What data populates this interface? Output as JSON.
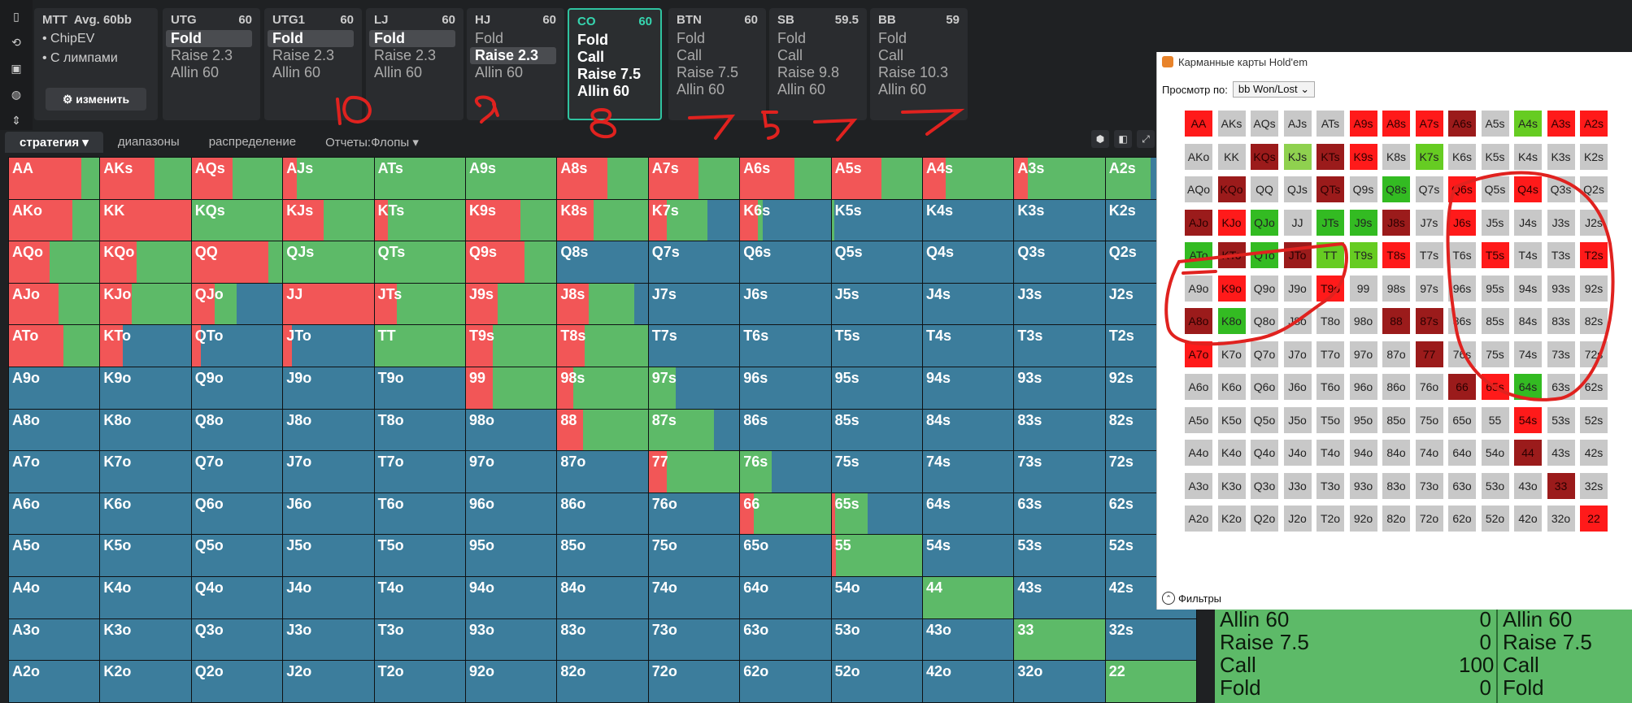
{
  "sidebar": {
    "icons": [
      "bookmark-icon",
      "history-icon",
      "save-icon",
      "gamepad-icon",
      "align-icon"
    ]
  },
  "mtt": {
    "title": "MTT",
    "avg": "Avg. 60bb",
    "items": [
      "ChipEV",
      "С лимпами"
    ],
    "edit": "изменить"
  },
  "positions": [
    {
      "name": "UTG",
      "stack": "60",
      "actions": [
        "Fold",
        "Raise 2.3",
        "Allin 60"
      ],
      "selected": 0
    },
    {
      "name": "UTG1",
      "stack": "60",
      "actions": [
        "Fold",
        "Raise 2.3",
        "Allin 60"
      ],
      "selected": 0
    },
    {
      "name": "LJ",
      "stack": "60",
      "actions": [
        "Fold",
        "Raise 2.3",
        "Allin 60"
      ],
      "selected": 0
    },
    {
      "name": "HJ",
      "stack": "60",
      "actions": [
        "Fold",
        "Raise 2.3",
        "Allin 60"
      ],
      "selected": 1
    },
    {
      "name": "CO",
      "stack": "60",
      "actions": [
        "Fold",
        "Call",
        "Raise 7.5",
        "Allin 60"
      ],
      "selected": -1
    },
    {
      "name": "BTN",
      "stack": "60",
      "actions": [
        "Fold",
        "Call",
        "Raise 7.5",
        "Allin 60"
      ],
      "selected": -1
    },
    {
      "name": "SB",
      "stack": "59.5",
      "actions": [
        "Fold",
        "Call",
        "Raise 9.8",
        "Allin 60"
      ],
      "selected": -1
    },
    {
      "name": "BB",
      "stack": "59",
      "actions": [
        "Fold",
        "Call",
        "Raise 10.3",
        "Allin 60"
      ],
      "selected": -1
    }
  ],
  "tabs": [
    "стратегия",
    "диапазоны",
    "распределение",
    "Отчеты:Флопы"
  ],
  "colors": {
    "fold": "#3c7d9c",
    "call": "#5dba68",
    "raise": "#f25657",
    "allin": "#f25657",
    "panel": "#1f2123"
  },
  "grid": {
    "hands": [
      [
        "AA",
        "AKs",
        "AQs",
        "AJs",
        "ATs",
        "A9s",
        "A8s",
        "A7s",
        "A6s",
        "A5s",
        "A4s",
        "A3s",
        "A2s"
      ],
      [
        "AKo",
        "KK",
        "KQs",
        "KJs",
        "KTs",
        "K9s",
        "K8s",
        "K7s",
        "K6s",
        "K5s",
        "K4s",
        "K3s",
        "K2s"
      ],
      [
        "AQo",
        "KQo",
        "QQ",
        "QJs",
        "QTs",
        "Q9s",
        "Q8s",
        "Q7s",
        "Q6s",
        "Q5s",
        "Q4s",
        "Q3s",
        "Q2s"
      ],
      [
        "AJo",
        "KJo",
        "QJo",
        "JJ",
        "JTs",
        "J9s",
        "J8s",
        "J7s",
        "J6s",
        "J5s",
        "J4s",
        "J3s",
        "J2s"
      ],
      [
        "ATo",
        "KTo",
        "QTo",
        "JTo",
        "TT",
        "T9s",
        "T8s",
        "T7s",
        "T6s",
        "T5s",
        "T4s",
        "T3s",
        "T2s"
      ],
      [
        "A9o",
        "K9o",
        "Q9o",
        "J9o",
        "T9o",
        "99",
        "98s",
        "97s",
        "96s",
        "95s",
        "94s",
        "93s",
        "92s"
      ],
      [
        "A8o",
        "K8o",
        "Q8o",
        "J8o",
        "T8o",
        "98o",
        "88",
        "87s",
        "86s",
        "85s",
        "84s",
        "83s",
        "82s"
      ],
      [
        "A7o",
        "K7o",
        "Q7o",
        "J7o",
        "T7o",
        "97o",
        "87o",
        "77",
        "76s",
        "75s",
        "74s",
        "73s",
        "72s"
      ],
      [
        "A6o",
        "K6o",
        "Q6o",
        "J6o",
        "T6o",
        "96o",
        "86o",
        "76o",
        "66",
        "65s",
        "64s",
        "63s",
        "62s"
      ],
      [
        "A5o",
        "K5o",
        "Q5o",
        "J5o",
        "T5o",
        "95o",
        "85o",
        "75o",
        "65o",
        "55",
        "54s",
        "53s",
        "52s"
      ],
      [
        "A4o",
        "K4o",
        "Q4o",
        "J4o",
        "T4o",
        "94o",
        "84o",
        "74o",
        "64o",
        "54o",
        "44",
        "43s",
        "42s"
      ],
      [
        "A3o",
        "K3o",
        "Q3o",
        "J3o",
        "T3o",
        "93o",
        "83o",
        "73o",
        "63o",
        "53o",
        "43o",
        "33",
        "32s"
      ],
      [
        "A2o",
        "K2o",
        "Q2o",
        "J2o",
        "T2o",
        "92o",
        "82o",
        "72o",
        "62o",
        "52o",
        "42o",
        "32o",
        "22"
      ]
    ],
    "mix": [
      [
        [
          0.0,
          0.8,
          0.2
        ],
        [
          0.0,
          0.6,
          0.4
        ],
        [
          0.0,
          0.45,
          0.55
        ],
        [
          0.0,
          0.15,
          0.85
        ],
        [
          0.0,
          0.0,
          1.0
        ],
        [
          0.0,
          0.0,
          1.0
        ],
        [
          0.0,
          0.55,
          0.45
        ],
        [
          0.0,
          0.55,
          0.45
        ],
        [
          0.0,
          0.6,
          0.4
        ],
        [
          0.0,
          0.55,
          0.45
        ],
        [
          0.0,
          0.25,
          0.75
        ],
        [
          0.0,
          0.15,
          0.85
        ],
        [
          0.5,
          0.0,
          0.5
        ]
      ],
      [
        [
          0.0,
          0.7,
          0.3
        ],
        [
          0.0,
          1.0,
          0.0
        ],
        [
          0.0,
          0.0,
          1.0
        ],
        [
          0.0,
          0.45,
          0.55
        ],
        [
          0.0,
          0.15,
          0.85
        ],
        [
          0.0,
          0.6,
          0.4
        ],
        [
          0.0,
          0.4,
          0.6
        ],
        [
          0.35,
          0.2,
          0.45
        ],
        [
          0.75,
          0.2,
          0.05
        ],
        [
          0.97,
          0.0,
          0.03
        ],
        [
          1,
          0,
          0
        ],
        [
          1,
          0,
          0
        ],
        [
          1,
          0,
          0
        ]
      ],
      [
        [
          0.0,
          0.45,
          0.55
        ],
        [
          0.0,
          0.4,
          0.6
        ],
        [
          0.0,
          0.85,
          0.15
        ],
        [
          0.0,
          0.0,
          1.0
        ],
        [
          0.0,
          0.0,
          1.0
        ],
        [
          0.0,
          0.65,
          0.35
        ],
        [
          1,
          0,
          0
        ],
        [
          1,
          0,
          0
        ],
        [
          1,
          0,
          0
        ],
        [
          1,
          0,
          0
        ],
        [
          1,
          0,
          0
        ],
        [
          1,
          0,
          0
        ],
        [
          1,
          0,
          0
        ]
      ],
      [
        [
          0.0,
          0.55,
          0.45
        ],
        [
          0.0,
          0.35,
          0.65
        ],
        [
          0.5,
          0.25,
          0.25
        ],
        [
          0.0,
          1.0,
          0.0
        ],
        [
          0.0,
          0.25,
          0.75
        ],
        [
          0.0,
          0.35,
          0.65
        ],
        [
          0.15,
          0.35,
          0.5
        ],
        [
          1,
          0,
          0
        ],
        [
          1,
          0,
          0
        ],
        [
          1,
          0,
          0
        ],
        [
          1,
          0,
          0
        ],
        [
          1,
          0,
          0
        ],
        [
          1,
          0,
          0
        ]
      ],
      [
        [
          0.0,
          0.6,
          0.4
        ],
        [
          0.75,
          0.25,
          0.0
        ],
        [
          0.9,
          0.1,
          0.0
        ],
        [
          0.9,
          0.1,
          0.0
        ],
        [
          0.0,
          0.0,
          1.0
        ],
        [
          0.0,
          0.3,
          0.7
        ],
        [
          0.0,
          0.3,
          0.7
        ],
        [
          1,
          0,
          0
        ],
        [
          1,
          0,
          0
        ],
        [
          1,
          0,
          0
        ],
        [
          1,
          0,
          0
        ],
        [
          1,
          0,
          0
        ],
        [
          1,
          0,
          0
        ]
      ],
      [
        [
          1,
          0,
          0
        ],
        [
          1,
          0,
          0
        ],
        [
          1,
          0,
          0
        ],
        [
          1,
          0,
          0
        ],
        [
          1,
          0,
          0
        ],
        [
          0.0,
          0.3,
          0.7
        ],
        [
          0.0,
          0.18,
          0.82
        ],
        [
          0.7,
          0.0,
          0.3
        ],
        [
          1,
          0,
          0
        ],
        [
          1,
          0,
          0
        ],
        [
          1,
          0,
          0
        ],
        [
          1,
          0,
          0
        ],
        [
          1,
          0,
          0
        ]
      ],
      [
        [
          1,
          0,
          0
        ],
        [
          1,
          0,
          0
        ],
        [
          1,
          0,
          0
        ],
        [
          1,
          0,
          0
        ],
        [
          1,
          0,
          0
        ],
        [
          1,
          0,
          0
        ],
        [
          0.0,
          0.28,
          0.72
        ],
        [
          0.0,
          0.0,
          0.72
        ],
        [
          1,
          0,
          0
        ],
        [
          1,
          0,
          0
        ],
        [
          1,
          0,
          0
        ],
        [
          1,
          0,
          0
        ],
        [
          1,
          0,
          0
        ]
      ],
      [
        [
          1,
          0,
          0
        ],
        [
          1,
          0,
          0
        ],
        [
          1,
          0,
          0
        ],
        [
          1,
          0,
          0
        ],
        [
          1,
          0,
          0
        ],
        [
          1,
          0,
          0
        ],
        [
          1,
          0,
          0
        ],
        [
          0.0,
          0.2,
          0.8
        ],
        [
          0.0,
          0.0,
          0.35
        ],
        [
          1,
          0,
          0
        ],
        [
          1,
          0,
          0
        ],
        [
          1,
          0,
          0
        ],
        [
          1,
          0,
          0
        ]
      ],
      [
        [
          1,
          0,
          0
        ],
        [
          1,
          0,
          0
        ],
        [
          1,
          0,
          0
        ],
        [
          1,
          0,
          0
        ],
        [
          1,
          0,
          0
        ],
        [
          1,
          0,
          0
        ],
        [
          1,
          0,
          0
        ],
        [
          1,
          0,
          0
        ],
        [
          0.0,
          0.15,
          0.85
        ],
        [
          0.0,
          0.04,
          0.36
        ],
        [
          1,
          0,
          0
        ],
        [
          1,
          0,
          0
        ],
        [
          1,
          0,
          0
        ]
      ],
      [
        [
          1,
          0,
          0
        ],
        [
          1,
          0,
          0
        ],
        [
          1,
          0,
          0
        ],
        [
          1,
          0,
          0
        ],
        [
          1,
          0,
          0
        ],
        [
          1,
          0,
          0
        ],
        [
          1,
          0,
          0
        ],
        [
          1,
          0,
          0
        ],
        [
          1,
          0,
          0
        ],
        [
          0.0,
          0.05,
          0.95
        ],
        [
          1,
          0,
          0
        ],
        [
          1,
          0,
          0
        ],
        [
          1,
          0,
          0
        ]
      ],
      [
        [
          1,
          0,
          0
        ],
        [
          1,
          0,
          0
        ],
        [
          1,
          0,
          0
        ],
        [
          1,
          0,
          0
        ],
        [
          1,
          0,
          0
        ],
        [
          1,
          0,
          0
        ],
        [
          1,
          0,
          0
        ],
        [
          1,
          0,
          0
        ],
        [
          1,
          0,
          0
        ],
        [
          1,
          0,
          0
        ],
        [
          0.0,
          0.0,
          1.0
        ],
        [
          1,
          0,
          0
        ],
        [
          1,
          0,
          0
        ]
      ],
      [
        [
          1,
          0,
          0
        ],
        [
          1,
          0,
          0
        ],
        [
          1,
          0,
          0
        ],
        [
          1,
          0,
          0
        ],
        [
          1,
          0,
          0
        ],
        [
          1,
          0,
          0
        ],
        [
          1,
          0,
          0
        ],
        [
          1,
          0,
          0
        ],
        [
          1,
          0,
          0
        ],
        [
          1,
          0,
          0
        ],
        [
          1,
          0,
          0
        ],
        [
          0.0,
          0.0,
          1.0
        ],
        [
          1,
          0,
          0
        ]
      ],
      [
        [
          1,
          0,
          0
        ],
        [
          1,
          0,
          0
        ],
        [
          1,
          0,
          0
        ],
        [
          1,
          0,
          0
        ],
        [
          1,
          0,
          0
        ],
        [
          1,
          0,
          0
        ],
        [
          1,
          0,
          0
        ],
        [
          1,
          0,
          0
        ],
        [
          1,
          0,
          0
        ],
        [
          1,
          0,
          0
        ],
        [
          1,
          0,
          0
        ],
        [
          1,
          0,
          0
        ],
        [
          0.0,
          0.0,
          1.0
        ]
      ]
    ]
  },
  "stats": {
    "rows": [
      {
        "label": "Allin 60",
        "value": "0"
      },
      {
        "label": "Raise 7.5",
        "value": "0"
      },
      {
        "label": "Call",
        "value": "100"
      },
      {
        "label": "Fold",
        "value": "0"
      }
    ],
    "right": [
      "Allin 60",
      "Raise 7.5",
      "Call",
      "Fold"
    ]
  },
  "window": {
    "title": "Карманные карты Hold'em",
    "view_label": "Просмотр по:",
    "view_value": "bb Won/Lost",
    "filters": "Фильтры",
    "colors": {
      "gray": "#c8c8c8",
      "red": "#ff1a1a",
      "darkred": "#9b1b1b",
      "green": "#33bb22",
      "lime": "#66cc22",
      "lightgreen": "#8fd14f"
    },
    "cells": [
      "rr",
      "gg",
      "gg",
      "gg",
      "gg",
      "rr",
      "rr",
      "rr",
      "dr",
      "gg",
      "lg",
      "rr",
      "rr",
      "gg",
      "gg",
      "dr",
      "gl",
      "dr",
      "rr",
      "gg",
      "lg",
      "gg",
      "gg",
      "gg",
      "gg",
      "gg",
      "gg",
      "dr",
      "gg",
      "gg",
      "dr",
      "gg",
      "gn",
      "gg",
      "rr",
      "gg",
      "rr",
      "gg",
      "gg",
      "dr",
      "rr",
      "gn",
      "gg",
      "gn",
      "gn",
      "dr",
      "gg",
      "rr",
      "gg",
      "gg",
      "gg",
      "gg",
      "gn",
      "dr",
      "gn",
      "dr",
      "lg",
      "lg",
      "rr",
      "gg",
      "gg",
      "rr",
      "gg",
      "gg",
      "rr",
      "gg",
      "rr",
      "gg",
      "gg",
      "rr",
      "gg",
      "gg",
      "gg",
      "gg",
      "gg",
      "gg",
      "gg",
      "gg",
      "dr",
      "gn",
      "gg",
      "gg",
      "gg",
      "gg",
      "dr",
      "dr",
      "gg",
      "gg",
      "gg",
      "gg",
      "gg",
      "rr",
      "gg",
      "gg",
      "gg",
      "gg",
      "gg",
      "gg",
      "dr",
      "gg",
      "gg",
      "gg",
      "gg",
      "gg",
      "gg",
      "gg",
      "gg",
      "gg",
      "gg",
      "gg",
      "gg",
      "gg",
      "dr",
      "rr",
      "gn",
      "gg",
      "gg",
      "gg",
      "gg",
      "gg",
      "gg",
      "gg",
      "gg",
      "gg",
      "gg",
      "gg",
      "gg",
      "rr",
      "gg",
      "gg",
      "gg",
      "gg",
      "gg",
      "gg",
      "gg",
      "gg",
      "gg",
      "gg",
      "gg",
      "gg",
      "dr",
      "gg",
      "gg",
      "gg",
      "gg",
      "gg",
      "gg",
      "gg",
      "gg",
      "gg",
      "gg",
      "gg",
      "gg",
      "gg",
      "dr",
      "gg",
      "gg",
      "gg",
      "gg",
      "gg",
      "gg",
      "gg",
      "gg",
      "gg",
      "gg",
      "gg",
      "gg",
      "gg",
      "rr"
    ]
  },
  "annotations": [
    "10",
    "9",
    "8",
    "7",
    "5",
    "7",
    "7"
  ]
}
